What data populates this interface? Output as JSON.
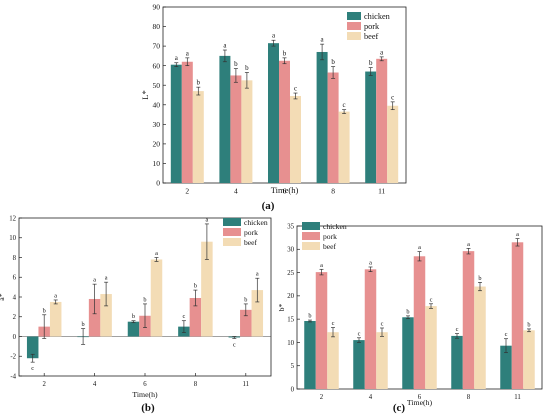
{
  "chart_data": [
    {
      "type": "bar",
      "panel_label": "(a)",
      "ylabel": "L*",
      "xlabel": "Time(h)",
      "categories": [
        "2",
        "4",
        "6",
        "8",
        "11"
      ],
      "ylim": [
        0,
        90
      ],
      "yticks": [
        "0",
        "10",
        "20",
        "30",
        "40",
        "50",
        "60",
        "70",
        "80",
        "90"
      ],
      "ytick_values": [
        0,
        10,
        20,
        30,
        40,
        50,
        60,
        70,
        80,
        90
      ],
      "legend_position": "top-right",
      "series": [
        {
          "name": "chicken",
          "color": "#2e7f7b",
          "values": [
            60.5,
            65,
            71.5,
            67,
            57
          ],
          "errors": [
            1,
            3,
            1.5,
            4,
            2
          ],
          "letters": [
            "a",
            "a",
            "a",
            "a",
            "b"
          ]
        },
        {
          "name": "pork",
          "color": "#e79090",
          "values": [
            62,
            55,
            62.5,
            56.5,
            63.5
          ],
          "errors": [
            2,
            3.5,
            1.5,
            3,
            1
          ],
          "letters": [
            "a",
            "b",
            "b",
            "b",
            "a"
          ]
        },
        {
          "name": "beef",
          "color": "#f3dcb5",
          "values": [
            47,
            52.5,
            44.5,
            36.5,
            39.5
          ],
          "errors": [
            2,
            4,
            1.5,
            1,
            2
          ],
          "letters": [
            "b",
            "b",
            "c",
            "c",
            "c"
          ]
        }
      ]
    },
    {
      "type": "bar",
      "panel_label": "(b)",
      "ylabel": "a*",
      "xlabel": "Time(h)",
      "categories": [
        "2",
        "4",
        "6",
        "8",
        "11"
      ],
      "ylim": [
        -4,
        12
      ],
      "yticks": [
        "-4",
        "-2",
        "0",
        "2",
        "4",
        "6",
        "8",
        "10",
        "12"
      ],
      "ytick_values": [
        -4,
        -2,
        0,
        2,
        4,
        6,
        8,
        10,
        12
      ],
      "legend_position": "top-right",
      "series": [
        {
          "name": "chicken",
          "color": "#2e7f7b",
          "values": [
            -2.2,
            0,
            1.5,
            1,
            -0.1
          ],
          "errors": [
            0.4,
            0.8,
            0.1,
            0.6,
            0.1
          ],
          "letters": [
            "c",
            "b",
            "b",
            "c",
            "c"
          ]
        },
        {
          "name": "pork",
          "color": "#e79090",
          "values": [
            1,
            3.8,
            2.1,
            3.9,
            2.7
          ],
          "errors": [
            1.2,
            1.5,
            1.2,
            0.8,
            0.6
          ],
          "letters": [
            "b",
            "a",
            "b",
            "b",
            "b"
          ]
        },
        {
          "name": "beef",
          "color": "#f3dcb5",
          "values": [
            3.5,
            4.3,
            7.8,
            9.6,
            4.7
          ],
          "errors": [
            0.2,
            1.2,
            0.2,
            1.8,
            1.2
          ],
          "letters": [
            "a",
            "a",
            "a",
            "a",
            "a"
          ]
        }
      ]
    },
    {
      "type": "bar",
      "panel_label": "(c)",
      "ylabel": "b*",
      "xlabel": "Time(h)",
      "categories": [
        "2",
        "4",
        "6",
        "8",
        "11"
      ],
      "ylim": [
        0,
        35
      ],
      "yticks": [
        "0",
        "5",
        "10",
        "15",
        "20",
        "25",
        "30",
        "35"
      ],
      "ytick_values": [
        0,
        5,
        10,
        15,
        20,
        25,
        30,
        35
      ],
      "legend_position": "top-left",
      "series": [
        {
          "name": "chicken",
          "color": "#2e7f7b",
          "values": [
            14.6,
            10.5,
            15.4,
            11.4,
            9.3
          ],
          "errors": [
            0.2,
            0.5,
            0.3,
            0.5,
            1.5
          ],
          "letters": [
            "b",
            "c",
            "b",
            "c",
            "c"
          ]
        },
        {
          "name": "pork",
          "color": "#e79090",
          "values": [
            25.1,
            25.7,
            28.5,
            29.6,
            31.5
          ],
          "errors": [
            0.6,
            0.5,
            1,
            0.6,
            0.8
          ],
          "letters": [
            "a",
            "a",
            "a",
            "a",
            "a"
          ]
        },
        {
          "name": "beef",
          "color": "#f3dcb5",
          "values": [
            12.2,
            12.2,
            17.8,
            22,
            12.6
          ],
          "errors": [
            1,
            0.9,
            0.5,
            0.9,
            0.3
          ],
          "letters": [
            "c",
            "c",
            "c",
            "b",
            "b"
          ]
        }
      ]
    }
  ]
}
